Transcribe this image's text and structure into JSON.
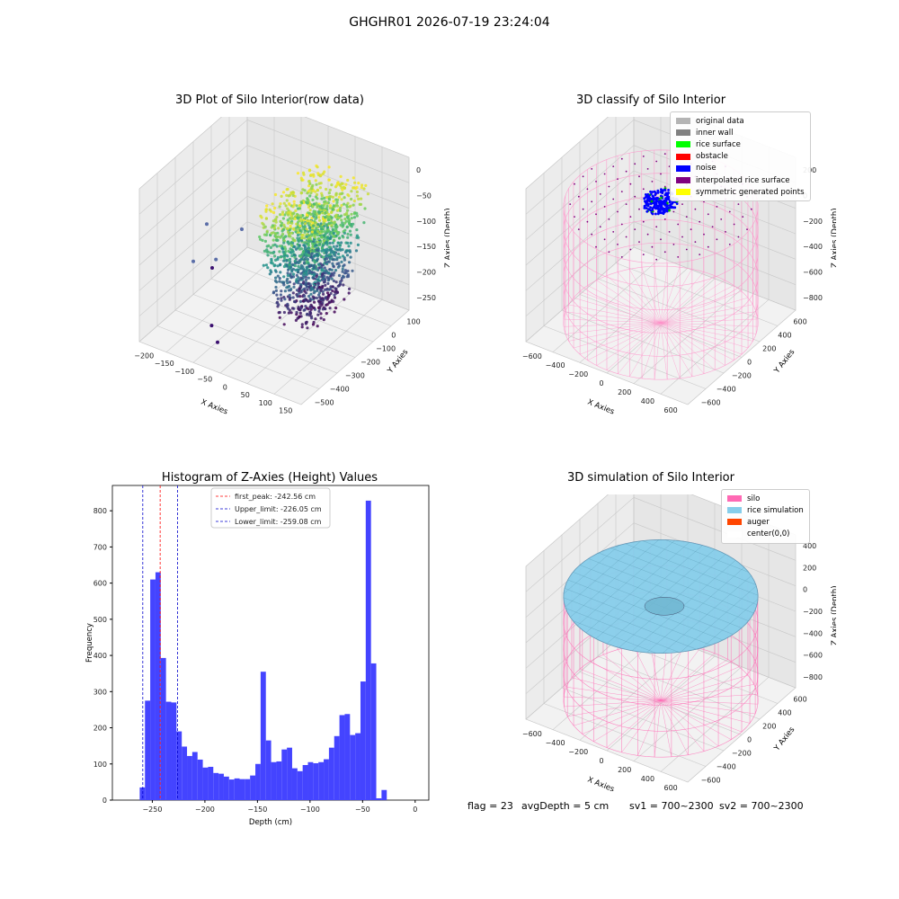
{
  "suptitle": "GHGHR01 2026-07-19 23:24:04",
  "chart_data": [
    {
      "type": "scatter",
      "title": "3D Plot of Silo Interior(row data)",
      "xlabel": "X Axies",
      "ylabel": "Y Axies",
      "zlabel": "Z Axies (Depth)",
      "xticks": [
        "−200",
        "−150",
        "−100",
        "−50",
        "0",
        "50",
        "100",
        "150"
      ],
      "yticks": [
        "100",
        "0",
        "−100",
        "−200",
        "−300",
        "−400",
        "−500"
      ],
      "zticks": [
        "0",
        "−50",
        "−100",
        "−150",
        "−200",
        "−250"
      ],
      "xlim": [
        -220,
        160
      ],
      "ylim": [
        -520,
        150
      ],
      "zlim": [
        -280,
        10
      ],
      "colormap": "viridis"
    },
    {
      "type": "scatter",
      "title": "3D classify of Silo Interior",
      "xlabel": "X Axies",
      "ylabel": "Y Axies",
      "zlabel": "Z Axies (Depth)",
      "xticks": [
        "−600",
        "−400",
        "−200",
        "0",
        "200",
        "400",
        "600"
      ],
      "yticks": [
        "600",
        "400",
        "200",
        "0",
        "−200",
        "−400",
        "−600"
      ],
      "zticks": [
        "200",
        "0",
        "−200",
        "−400",
        "−600",
        "−800"
      ],
      "legend": [
        {
          "label": "original data",
          "color": "#b4b4b4"
        },
        {
          "label": "inner wall",
          "color": "#808080"
        },
        {
          "label": "rice surface",
          "color": "#00ff00"
        },
        {
          "label": "obstacle",
          "color": "#ff0000"
        },
        {
          "label": "noise",
          "color": "#0000ff"
        },
        {
          "label": "interpolated rice surface",
          "color": "#800080"
        },
        {
          "label": "symmetric generated points",
          "color": "#ffff00"
        }
      ]
    },
    {
      "type": "bar",
      "title": "Histogram of Z-Axies (Height) Values",
      "xlabel": "Depth (cm)",
      "ylabel": "Frequency",
      "xlim": [
        -288,
        13
      ],
      "ylim": [
        0,
        870
      ],
      "xticks": [
        -250,
        -200,
        -150,
        -100,
        -50,
        0
      ],
      "xtick_labels": [
        "−250",
        "−200",
        "−150",
        "−100",
        "−50",
        "0"
      ],
      "yticks": [
        0,
        100,
        200,
        300,
        400,
        500,
        600,
        700,
        800
      ],
      "bin_start": -262,
      "bin_width": 5,
      "values": [
        35,
        275,
        610,
        630,
        393,
        272,
        270,
        190,
        148,
        122,
        133,
        112,
        90,
        92,
        75,
        73,
        65,
        57,
        60,
        58,
        58,
        68,
        100,
        355,
        165,
        105,
        107,
        140,
        145,
        88,
        80,
        97,
        105,
        102,
        105,
        113,
        145,
        177,
        235,
        238,
        180,
        185,
        328,
        828,
        378,
        5,
        28
      ],
      "bar_color": "#4444ff",
      "lines": [
        {
          "label": "first_peak: -242.56 cm",
          "x": -242.56,
          "color": "#ff0000"
        },
        {
          "label": "Upper_limit: -226.05 cm",
          "x": -226.05,
          "color": "#0000cc"
        },
        {
          "label": "Lower_limit: -259.08 cm",
          "x": -259.08,
          "color": "#0000cc"
        }
      ]
    },
    {
      "type": "surface",
      "title": "3D simulation of Silo Interior",
      "xlabel": "X Axies",
      "ylabel": "Y Axies",
      "zlabel": "Z Axies (Depth)",
      "xticks": [
        "−600",
        "−400",
        "−200",
        "0",
        "200",
        "400",
        "600"
      ],
      "yticks": [
        "600",
        "400",
        "200",
        "0",
        "−200",
        "−400",
        "−600"
      ],
      "zticks": [
        "400",
        "200",
        "0",
        "−200",
        "−400",
        "−600",
        "−800"
      ],
      "legend": [
        {
          "label": "silo",
          "color": "#ff69b4"
        },
        {
          "label": "rice simulation",
          "color": "#87ceeb"
        },
        {
          "label": "auger",
          "color": "#ff4500"
        },
        {
          "label": "center(0,0)",
          "color": "#ffffff"
        }
      ]
    }
  ],
  "footer": {
    "flag": "flag = 23",
    "avg": "avgDepth = 5 cm",
    "sv1": "sv1 = 700~2300",
    "sv2": "sv2 = 700~2300"
  }
}
